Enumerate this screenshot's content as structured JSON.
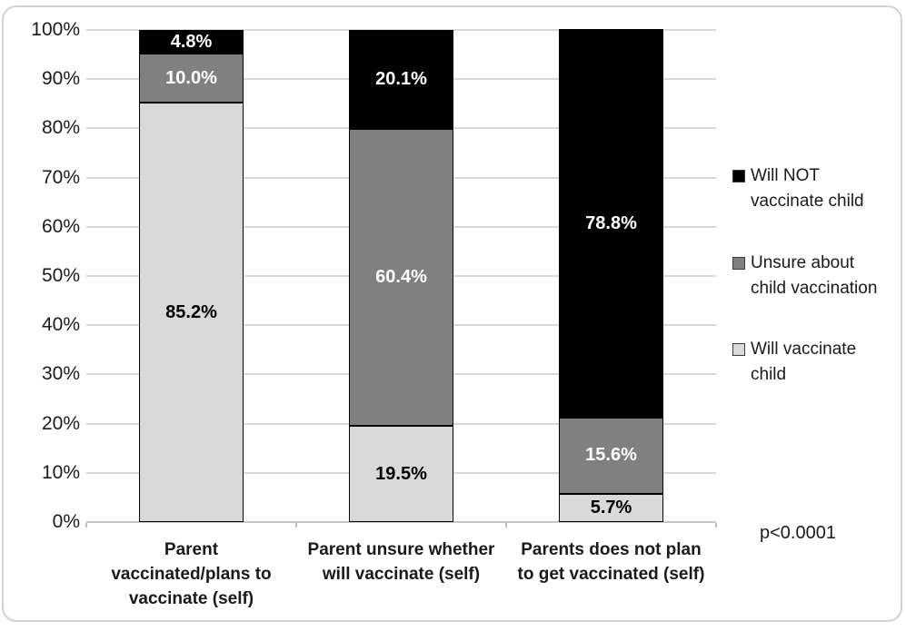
{
  "chart_data": {
    "type": "bar",
    "stacked": true,
    "orientation": "vertical",
    "grid": true,
    "ylim": [
      0,
      100
    ],
    "y_ticks": [
      "0%",
      "10%",
      "20%",
      "30%",
      "40%",
      "50%",
      "60%",
      "70%",
      "80%",
      "90%",
      "100%"
    ],
    "categories": [
      "Parent vaccinated/plans to vaccinate (self)",
      "Parent unsure whether will vaccinate (self)",
      "Parents does not plan to get vaccinated (self)"
    ],
    "category_label_lines": [
      [
        "Parent",
        "vaccinated/plans to",
        "vaccinate (self)"
      ],
      [
        "Parent unsure whether",
        "will vaccinate (self)"
      ],
      [
        "Parents does not plan",
        "to get vaccinated (self)"
      ]
    ],
    "series": [
      {
        "name": "Will vaccinate child",
        "values": [
          85.2,
          19.5,
          5.7
        ],
        "color": "#d9d9d9",
        "label_color": "#000000"
      },
      {
        "name": "Unsure about child vaccination",
        "values": [
          10.0,
          60.4,
          15.6
        ],
        "color": "#808080",
        "label_color": "#ffffff"
      },
      {
        "name": "Will NOT vaccinate child",
        "values": [
          4.8,
          20.1,
          78.8
        ],
        "color": "#000000",
        "label_color": "#ffffff"
      }
    ],
    "data_labels": [
      [
        "85.2%",
        "19.5%",
        "5.7%"
      ],
      [
        "10.0%",
        "60.4%",
        "15.6%"
      ],
      [
        "4.8%",
        "20.1%",
        "78.8%"
      ]
    ],
    "legend_position": "right",
    "legend": [
      {
        "series": "Will NOT vaccinate child",
        "lines": [
          "Will NOT",
          "vaccinate child"
        ],
        "swatch_color": "#000000"
      },
      {
        "series": "Unsure about child vaccination",
        "lines": [
          "Unsure about",
          "child vaccination"
        ],
        "swatch_color": "#808080"
      },
      {
        "series": "Will vaccinate child",
        "lines": [
          "Will vaccinate",
          "child"
        ],
        "swatch_color": "#d9d9d9"
      }
    ],
    "annotation": "p<0.0001",
    "colors": {
      "gridline": "#d9d9d9",
      "axis_line": "#c6c6c6",
      "frame_border": "#d2d2d2",
      "text": "#1a1a1a"
    }
  }
}
